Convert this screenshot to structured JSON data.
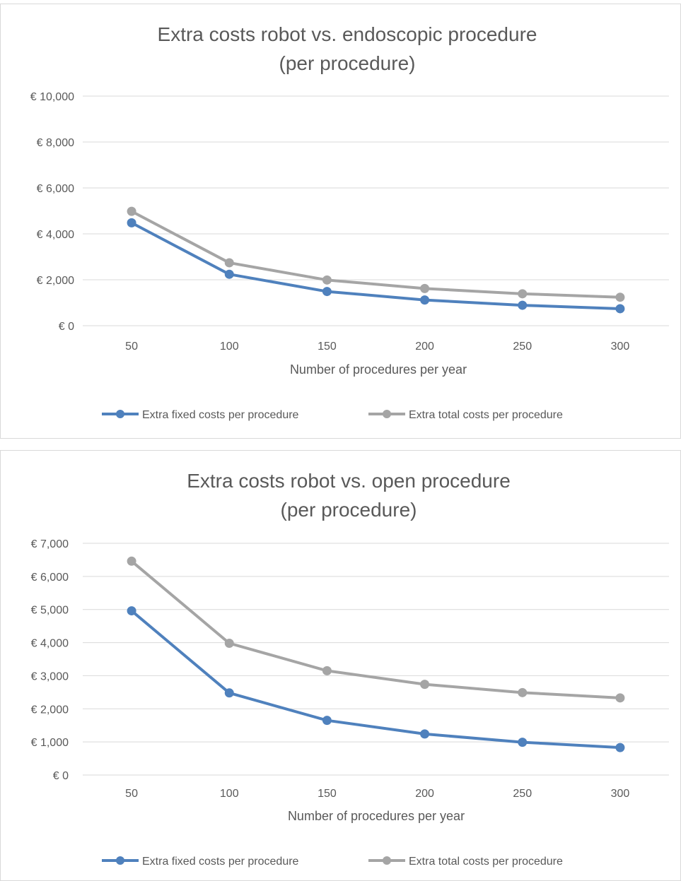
{
  "chart_data": [
    {
      "type": "line",
      "title": "Extra costs robot vs. endoscopic procedure",
      "subtitle": "(per procedure)",
      "xlabel": "Number of procedures per year",
      "ylabel": "",
      "x": [
        50,
        100,
        150,
        200,
        250,
        300
      ],
      "x_tick_labels": [
        "50",
        "100",
        "150",
        "200",
        "250",
        "300"
      ],
      "ylim": [
        0,
        10000
      ],
      "y_tick_values": [
        0,
        2000,
        4000,
        6000,
        8000,
        10000
      ],
      "y_tick_labels": [
        "€ 0",
        "€ 2,000",
        "€ 4,000",
        "€ 6,000",
        "€ 8,000",
        "€ 10,000"
      ],
      "grid": true,
      "legend_position": "bottom",
      "series": [
        {
          "name": "Extra fixed costs per procedure",
          "color": "#4f81bd",
          "values": [
            4480,
            2240,
            1490,
            1120,
            890,
            740
          ]
        },
        {
          "name": "Extra total costs per procedure",
          "color": "#a5a5a5",
          "values": [
            4980,
            2740,
            1990,
            1620,
            1390,
            1240
          ]
        }
      ]
    },
    {
      "type": "line",
      "title": "Extra costs robot vs. open procedure",
      "subtitle": "(per procedure)",
      "xlabel": "Number of procedures per year",
      "ylabel": "",
      "x": [
        50,
        100,
        150,
        200,
        250,
        300
      ],
      "x_tick_labels": [
        "50",
        "100",
        "150",
        "200",
        "250",
        "300"
      ],
      "ylim": [
        0,
        7000
      ],
      "y_tick_values": [
        0,
        1000,
        2000,
        3000,
        4000,
        5000,
        6000,
        7000
      ],
      "y_tick_labels": [
        "€ 0",
        "€ 1,000",
        "€ 2,000",
        "€ 3,000",
        "€ 4,000",
        "€ 5,000",
        "€ 6,000",
        "€ 7,000"
      ],
      "grid": true,
      "legend_position": "bottom",
      "series": [
        {
          "name": "Extra fixed costs per procedure",
          "color": "#4f81bd",
          "values": [
            4960,
            2480,
            1650,
            1240,
            990,
            830
          ]
        },
        {
          "name": "Extra total costs per procedure",
          "color": "#a5a5a5",
          "values": [
            6460,
            3980,
            3150,
            2740,
            2490,
            2330
          ]
        }
      ]
    }
  ]
}
